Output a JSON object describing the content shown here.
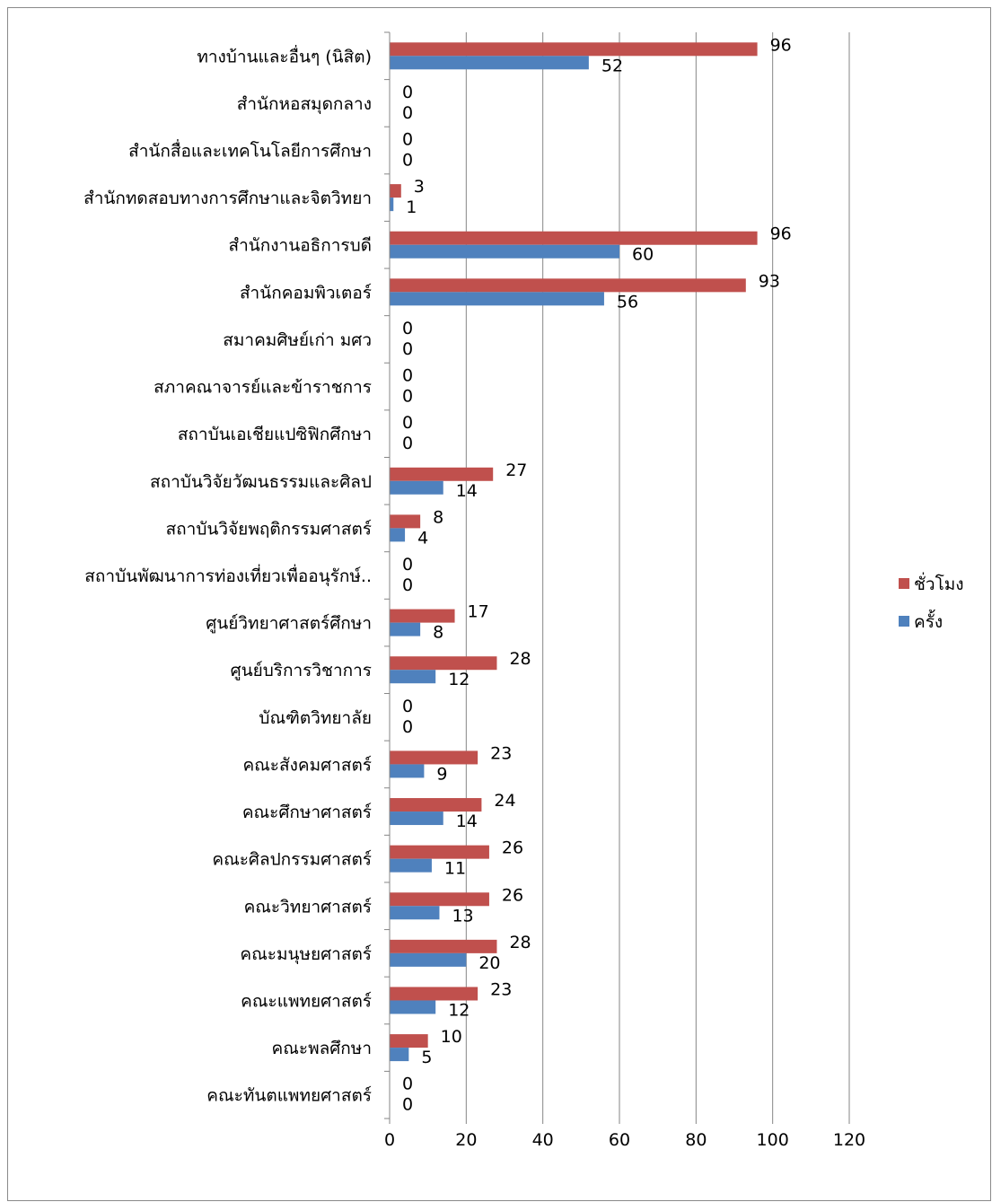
{
  "chart_data": {
    "type": "bar",
    "orientation": "horizontal",
    "title": "",
    "xlabel": "",
    "ylabel": "",
    "xlim": [
      0,
      120
    ],
    "x_ticks": [
      "0",
      "20",
      "40",
      "60",
      "80",
      "100",
      "120"
    ],
    "grid": "vertical",
    "legend_position": "right",
    "categories": [
      "ทางบ้านและอื่นๆ (นิสิต)",
      "สำนักหอสมุดกลาง",
      "สำนักสื่อและเทคโนโลยีการศึกษา",
      "สำนักทดสอบทางการศึกษาและจิตวิทยา",
      "สำนักงานอธิการบดี",
      "สำนักคอมพิวเตอร์",
      "สมาคมศิษย์เก่า มศว",
      "สภาคณาจารย์และข้าราชการ",
      "สถาบันเอเชียแปซิฟิกศึกษา",
      "สถาบันวิจัยวัฒนธรรมและศิลป",
      "สถาบันวิจัยพฤติกรรมศาสตร์",
      "สถาบันพัฒนาการท่องเที่ยวเพื่ออนุรักษ์..",
      "ศูนย์วิทยาศาสตร์ศึกษา",
      "ศูนย์บริการวิชาการ",
      "บัณฑิตวิทยาลัย",
      "คณะสังคมศาสตร์",
      "คณะศึกษาศาสตร์",
      "คณะศิลปกรรมศาสตร์",
      "คณะวิทยาศาสตร์",
      "คณะมนุษยศาสตร์",
      "คณะแพทยศาสตร์",
      "คณะพลศึกษา",
      "คณะทันตแพทยศาสตร์"
    ],
    "series": [
      {
        "name": "ชั่วโมง",
        "color": "#c0504d",
        "values": [
          96,
          0,
          0,
          3,
          96,
          93,
          0,
          0,
          0,
          27,
          8,
          0,
          17,
          28,
          0,
          23,
          24,
          26,
          26,
          28,
          23,
          10,
          0
        ]
      },
      {
        "name": "ครั้ง",
        "color": "#4f81bd",
        "values": [
          52,
          0,
          0,
          1,
          60,
          56,
          0,
          0,
          0,
          14,
          4,
          0,
          8,
          12,
          0,
          9,
          14,
          11,
          13,
          20,
          12,
          5,
          0
        ]
      }
    ]
  }
}
